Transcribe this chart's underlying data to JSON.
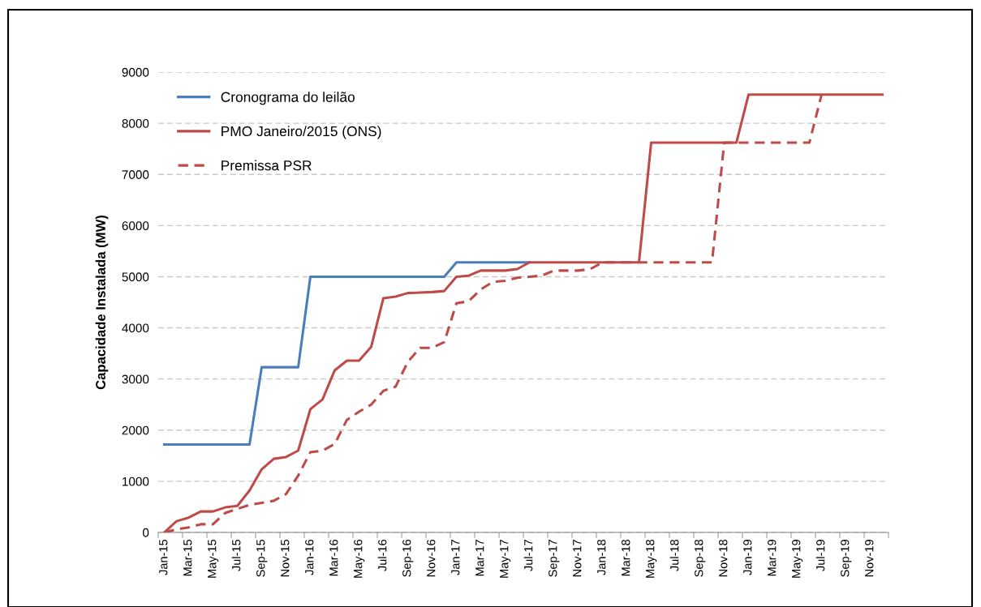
{
  "chart_data": {
    "type": "line",
    "ylabel": "Capacidade Instalada (MW)",
    "categories": [
      "Jan-15",
      null,
      "Mar-15",
      null,
      "May-15",
      null,
      "Jul-15",
      null,
      "Sep-15",
      null,
      "Nov-15",
      null,
      "Jan-16",
      null,
      "Mar-16",
      null,
      "May-16",
      null,
      "Jul-16",
      null,
      "Sep-16",
      null,
      "Nov-16",
      null,
      "Jan-17",
      null,
      "Mar-17",
      null,
      "May-17",
      null,
      "Jul-17",
      null,
      "Sep-17",
      null,
      "Nov-17",
      null,
      "Jan-18",
      null,
      "Mar-18",
      null,
      "May-18",
      null,
      "Jul-18",
      null,
      "Sep-18",
      null,
      "Nov-18",
      null,
      "Jan-19",
      null,
      "Mar-19",
      null,
      "May-19",
      null,
      "Jul-19",
      null,
      "Sep-19",
      null,
      "Nov-19",
      null
    ],
    "series": [
      {
        "name": "Cronograma do leilão",
        "color": "#4a7ebb",
        "line_style": "solid",
        "values": [
          1720,
          1720,
          1720,
          1720,
          1720,
          1720,
          1720,
          1720,
          3230,
          3230,
          3230,
          3230,
          5000,
          5000,
          5000,
          5000,
          5000,
          5000,
          5000,
          5000,
          5000,
          5000,
          5000,
          5000,
          5280,
          5280,
          5280,
          5280,
          5280,
          5280,
          5280,
          null,
          null,
          null,
          null,
          null,
          null,
          null,
          null,
          null,
          null,
          null,
          null,
          null,
          null,
          null,
          null,
          null,
          null,
          null,
          null,
          null,
          null,
          null,
          null,
          null,
          null,
          null,
          null,
          null
        ]
      },
      {
        "name": "PMO Janeiro/2015 (ONS)",
        "color": "#be4b48",
        "line_style": "solid",
        "values": [
          0,
          220,
          290,
          410,
          410,
          490,
          520,
          820,
          1235,
          1440,
          1475,
          1600,
          2410,
          2600,
          3170,
          3360,
          3360,
          3630,
          4580,
          4610,
          4680,
          4690,
          4700,
          4720,
          5000,
          5020,
          5120,
          5120,
          5120,
          5150,
          5280,
          5280,
          5280,
          5280,
          5280,
          5280,
          5280,
          5280,
          5280,
          5280,
          7620,
          7620,
          7620,
          7620,
          7620,
          7620,
          7620,
          7620,
          8560,
          8560,
          8560,
          8560,
          8560,
          8560,
          8560,
          8560,
          8560,
          8560,
          8560,
          8560
        ]
      },
      {
        "name": "Premissa PSR",
        "color": "#be4b48",
        "line_style": "dashed",
        "values": [
          0,
          60,
          100,
          160,
          160,
          380,
          460,
          540,
          580,
          620,
          750,
          1110,
          1570,
          1600,
          1730,
          2200,
          2360,
          2500,
          2770,
          2850,
          3330,
          3610,
          3610,
          3720,
          4480,
          4520,
          4750,
          4900,
          4920,
          4980,
          5000,
          5020,
          5120,
          5120,
          5120,
          5150,
          5280,
          5280,
          5280,
          5280,
          5280,
          5280,
          5280,
          5280,
          5280,
          5280,
          7620,
          7620,
          7620,
          7620,
          7620,
          7620,
          7620,
          7620,
          8560,
          null,
          null,
          null,
          null,
          null
        ]
      }
    ],
    "ylim": [
      0,
      9000
    ],
    "yticks": [
      0,
      1000,
      2000,
      3000,
      4000,
      5000,
      6000,
      7000,
      8000,
      9000
    ],
    "grid": "y",
    "legend": "top left",
    "marker": "none"
  }
}
